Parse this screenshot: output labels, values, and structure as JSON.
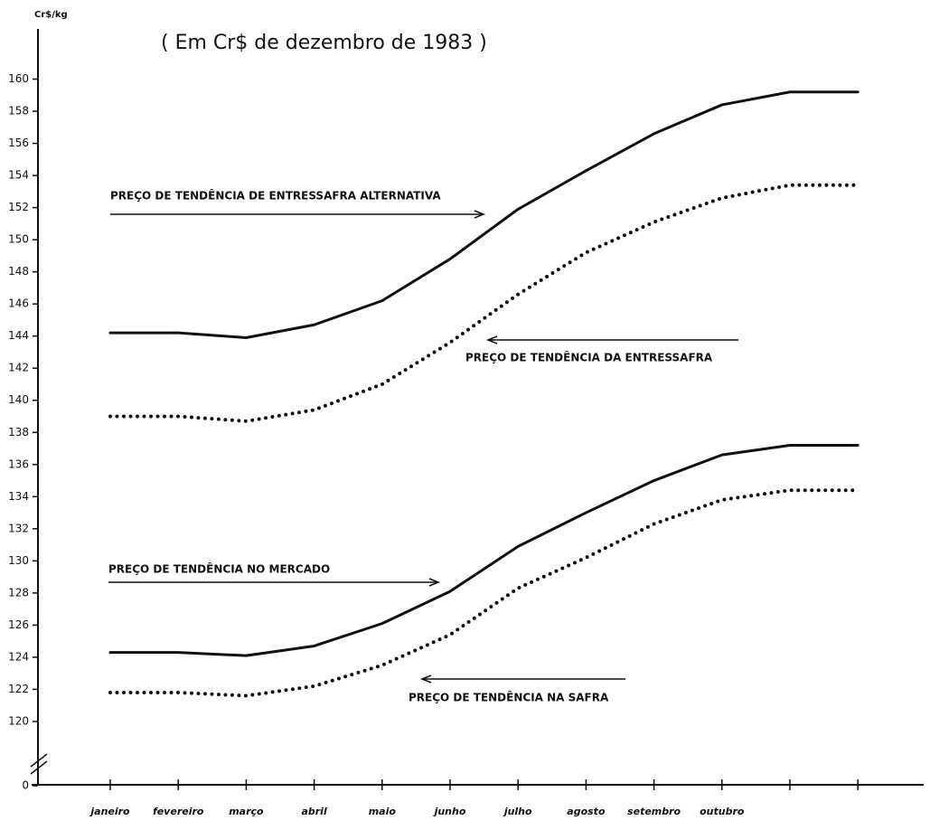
{
  "chart_data": {
    "type": "line",
    "title": "( Em Cr$ de dezembro de 1983 )",
    "y_label": "Cr$/kg",
    "categories": [
      "janeiro",
      "fevereiro",
      "março",
      "abril",
      "maio",
      "junho",
      "julho",
      "agosto",
      "setembro",
      "outubro",
      null,
      null
    ],
    "series": [
      {
        "name": "PREÇO DE TENDÊNCIA DE ENTRESSAFRA ALTERNATIVA",
        "color": "#111111",
        "style": "solid",
        "values": [
          144.2,
          144.2,
          143.9,
          144.7,
          146.2,
          148.8,
          151.9,
          154.3,
          156.6,
          158.4,
          159.2,
          159.2
        ]
      },
      {
        "name": "PREÇO DE TENDÊNCIA DA ENTRESSAFRA",
        "color": "#111111",
        "style": "dotted",
        "values": [
          139.0,
          139.0,
          138.7,
          139.4,
          141.0,
          143.6,
          146.6,
          149.2,
          151.1,
          152.6,
          153.4,
          153.4
        ]
      },
      {
        "name": "PREÇO DE TENDÊNCIA NO MERCADO",
        "color": "#111111",
        "style": "solid",
        "values": [
          124.3,
          124.3,
          124.1,
          124.7,
          126.1,
          128.1,
          130.9,
          133.0,
          135.0,
          136.6,
          137.2,
          137.2
        ]
      },
      {
        "name": "PREÇO DE TENDÊNCIA NA SAFRA",
        "color": "#111111",
        "style": "dotted",
        "values": [
          121.8,
          121.8,
          121.6,
          122.2,
          123.5,
          125.4,
          128.3,
          130.2,
          132.3,
          133.8,
          134.4,
          134.4
        ]
      }
    ],
    "ylim": [
      116,
      162
    ],
    "yticks": [
      0,
      120,
      122,
      124,
      126,
      128,
      130,
      132,
      134,
      136,
      138,
      140,
      142,
      144,
      146,
      148,
      150,
      152,
      154,
      156,
      158,
      160
    ],
    "axis_break": true,
    "grid": false
  }
}
